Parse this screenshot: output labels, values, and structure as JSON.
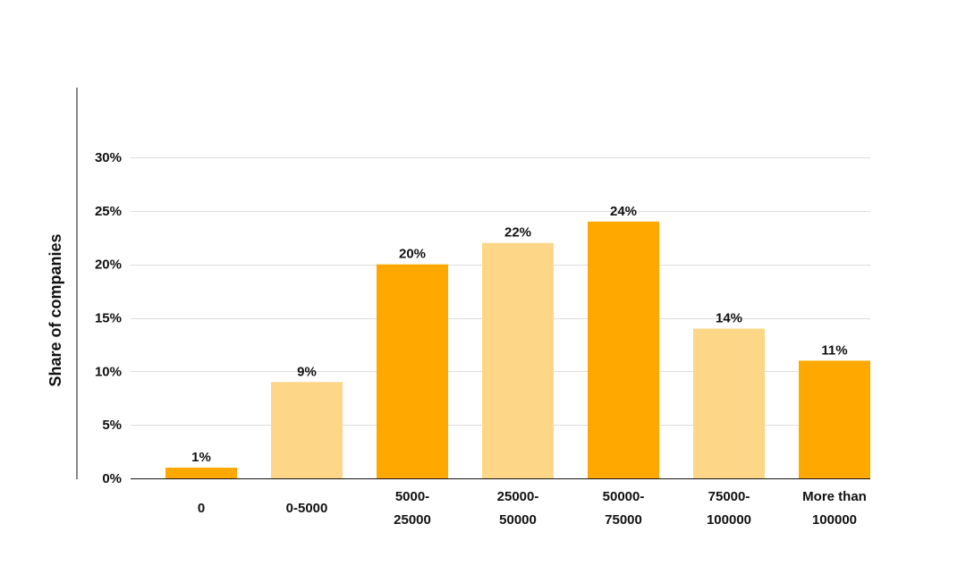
{
  "chart_data": {
    "type": "bar",
    "ylabel": "Share of companies",
    "xlabel": "",
    "ylim": [
      0,
      30
    ],
    "yticks": [
      0,
      5,
      10,
      15,
      20,
      25,
      30
    ],
    "ytick_format": "{v}%",
    "grid": true,
    "categories": [
      [
        "0"
      ],
      [
        "0-5000"
      ],
      [
        "5000-",
        "25000"
      ],
      [
        "25000-",
        "50000"
      ],
      [
        "50000-",
        "75000"
      ],
      [
        "75000-",
        "100000"
      ],
      [
        "More than",
        "100000"
      ]
    ],
    "values": [
      1,
      9,
      20,
      22,
      24,
      14,
      11
    ],
    "data_labels": [
      "1%",
      "9%",
      "20%",
      "22%",
      "24%",
      "14%",
      "11%"
    ],
    "bar_colors": [
      "#FFA800",
      "#FDD688",
      "#FFA800",
      "#FDD688",
      "#FFA800",
      "#FDD688",
      "#FFA800"
    ]
  }
}
